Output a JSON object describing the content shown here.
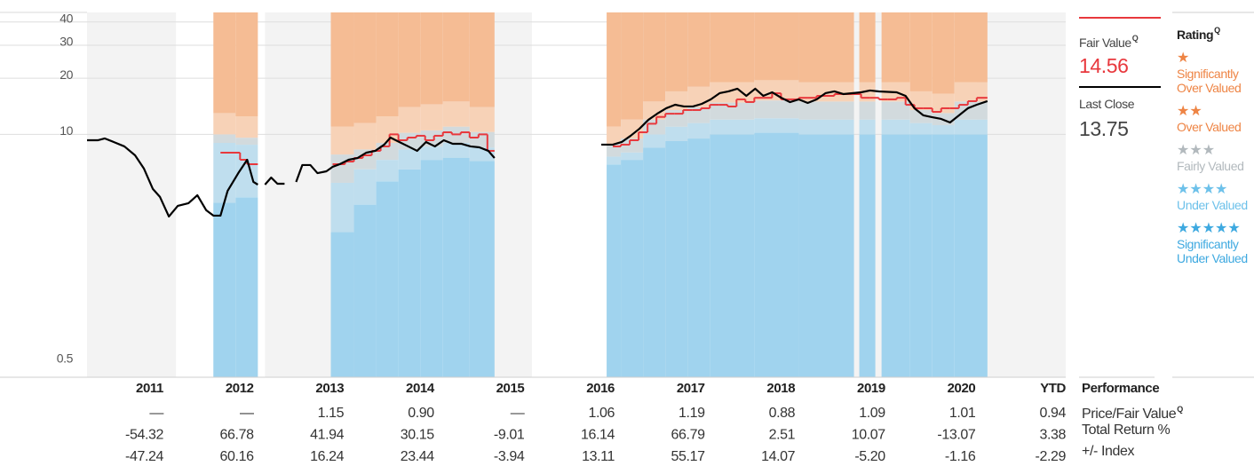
{
  "chart_data": {
    "type": "line",
    "log_scale": true,
    "grid": true,
    "xlim": [
      2011,
      2022
    ],
    "ylim": [
      0.5,
      45
    ],
    "yticks": [
      0.5,
      10,
      20,
      30,
      40
    ],
    "series": [
      {
        "name": "Fair Value",
        "color": "#e8383d",
        "step": true,
        "x": [
          2012.5,
          2012.72,
          2012.8,
          2012.92,
          null,
          2013.76,
          2013.9,
          2014.0,
          2014.1,
          2014.2,
          2014.3,
          2014.4,
          2014.5,
          2014.6,
          2014.7,
          2014.8,
          2014.9,
          2015.0,
          2015.1,
          2015.2,
          2015.3,
          2015.4,
          2015.5,
          2015.58,
          null,
          2016.91,
          2017.0,
          2017.1,
          2017.2,
          2017.3,
          2017.4,
          2017.5,
          2017.6,
          2017.7,
          2017.8,
          2017.9,
          2018.0,
          2018.1,
          2018.2,
          2018.3,
          2018.4,
          2018.5,
          2018.6,
          2018.7,
          2018.8,
          2018.9,
          2019.0,
          2019.1,
          2019.2,
          2019.3,
          2019.4,
          2019.5,
          2019.6,
          2019.7,
          2019.8,
          2019.9,
          2020.0,
          2020.1,
          2020.2,
          2020.3,
          2020.4,
          2020.5,
          2020.6,
          2020.7,
          2020.8,
          2020.9,
          2021.0,
          2021.12
        ],
        "values": [
          7.98,
          7.31,
          6.92,
          6.92,
          null,
          6.92,
          7.15,
          7.47,
          7.72,
          8.16,
          8.62,
          10.0,
          9.3,
          9.61,
          9.83,
          9.3,
          9.83,
          10.26,
          10.0,
          10.26,
          9.61,
          10.0,
          8.16,
          8.16,
          null,
          8.62,
          8.81,
          9.3,
          10.26,
          11.4,
          12.4,
          12.9,
          12.9,
          13.5,
          13.5,
          13.8,
          14.4,
          14.4,
          14.1,
          15.4,
          14.9,
          15.7,
          15.7,
          16.6,
          15.4,
          15.4,
          15.7,
          15.7,
          16.08,
          16.08,
          16.44,
          16.44,
          16.44,
          15.7,
          15.7,
          15.4,
          15.4,
          15.7,
          14.4,
          13.8,
          13.8,
          13.2,
          13.8,
          13.8,
          14.4,
          15.06,
          15.7,
          15.7
        ]
      },
      {
        "name": "Last Close",
        "color": "#000000",
        "x": [
          2011.0,
          2011.12,
          2011.2,
          2011.3,
          2011.42,
          2011.54,
          2011.64,
          2011.74,
          2011.82,
          2011.92,
          2012.02,
          2012.14,
          2012.24,
          2012.34,
          2012.42,
          2012.5,
          2012.58,
          2012.7,
          2012.8,
          2012.87,
          2012.92,
          null,
          2013.0,
          2013.07,
          2013.14,
          2013.22,
          null,
          2013.35,
          2013.42,
          2013.51,
          2013.59,
          2013.69,
          2013.76,
          2013.84,
          2013.94,
          2014.04,
          2014.14,
          2014.24,
          2014.34,
          2014.41,
          2014.51,
          2014.61,
          2014.71,
          2014.81,
          2014.91,
          2015.01,
          2015.11,
          2015.21,
          2015.31,
          2015.41,
          2015.51,
          2015.58,
          null,
          2016.78,
          2016.91,
          2017.01,
          2017.11,
          2017.21,
          2017.31,
          2017.41,
          2017.51,
          2017.61,
          2017.71,
          2017.81,
          2017.91,
          2018.01,
          2018.11,
          2018.21,
          2018.31,
          2018.41,
          2018.51,
          2018.6,
          2018.7,
          2018.8,
          2018.9,
          2019.0,
          2019.1,
          2019.2,
          2019.3,
          2019.4,
          2019.5,
          2019.6,
          2019.7,
          2019.8,
          2019.9,
          2020.1,
          2020.2,
          2020.3,
          2020.4,
          2020.5,
          2020.6,
          2020.7,
          2020.8,
          2020.9,
          2021.0,
          2021.12
        ],
        "values": [
          9.3,
          9.3,
          9.51,
          9.1,
          8.62,
          7.72,
          6.55,
          5.1,
          4.62,
          3.63,
          4.14,
          4.28,
          4.72,
          3.92,
          3.67,
          3.67,
          4.98,
          6.2,
          7.31,
          5.56,
          5.38,
          null,
          5.38,
          5.87,
          5.44,
          5.44,
          null,
          5.56,
          6.85,
          6.85,
          6.2,
          6.34,
          6.7,
          6.92,
          7.31,
          7.47,
          7.98,
          8.16,
          8.81,
          9.61,
          9.1,
          8.62,
          8.16,
          9.1,
          8.62,
          9.3,
          8.9,
          8.9,
          8.62,
          8.52,
          8.16,
          7.47,
          null,
          8.81,
          8.81,
          9.1,
          9.83,
          10.73,
          11.97,
          12.92,
          13.8,
          14.41,
          14.11,
          14.11,
          14.57,
          15.39,
          16.62,
          16.99,
          17.56,
          16.08,
          17.56,
          16.08,
          16.8,
          15.73,
          14.89,
          15.39,
          14.73,
          15.39,
          16.62,
          16.99,
          16.44,
          16.62,
          16.8,
          17.18,
          16.99,
          16.8,
          16.08,
          13.8,
          12.64,
          12.36,
          12.1,
          11.58,
          12.64,
          13.8,
          14.41,
          15.06
        ]
      }
    ],
    "bands": {
      "colors": [
        "#a0d3ee",
        "#bfdeee",
        "#d2dadd",
        "#f7d2b7",
        "#f5bc94"
      ],
      "edges": [
        2012.42,
        2012.67,
        2012.92,
        2013.74,
        2014.0,
        2014.25,
        2014.5,
        2014.75,
        2015.0,
        2015.3,
        2015.58,
        2016.84,
        2017.0,
        2017.25,
        2017.5,
        2017.75,
        2018.0,
        2018.5,
        2019.0,
        2019.62,
        2019.68,
        2019.86,
        2019.93,
        2020.25,
        2020.5,
        2020.75,
        2021.12
      ],
      "levels": [
        [
          4.3,
          9,
          10,
          13
        ],
        [
          4.6,
          8.8,
          9.6,
          12.5
        ],
        null,
        [
          3.0,
          5.5,
          7.8,
          11
        ],
        [
          4.2,
          6.5,
          8.3,
          11.5
        ],
        [
          5.6,
          7.3,
          9.0,
          12.5
        ],
        [
          6.5,
          8.3,
          10.2,
          14
        ],
        [
          7.3,
          8.6,
          10.5,
          14.5
        ],
        [
          7.5,
          9.0,
          11.0,
          15
        ],
        [
          7.2,
          8.5,
          10.3,
          14
        ],
        null,
        [
          6.9,
          7.6,
          8.9,
          11
        ],
        [
          7.3,
          8.0,
          9.5,
          12
        ],
        [
          8.5,
          10,
          12,
          15
        ],
        [
          9.2,
          11,
          13.5,
          17
        ],
        [
          9.5,
          11.5,
          14,
          18
        ],
        [
          10,
          12,
          14.8,
          19
        ],
        [
          10.2,
          12.2,
          15.2,
          19.5
        ],
        [
          10,
          12,
          15,
          19
        ],
        null,
        [
          10,
          12,
          15,
          19
        ],
        null,
        [
          10,
          12,
          15,
          19
        ],
        [
          10,
          11.5,
          13.5,
          17
        ],
        [
          10,
          11.2,
          13,
          16.5
        ],
        [
          10,
          12,
          15,
          19
        ]
      ]
    }
  },
  "legend": {
    "fair_value": 14.56,
    "last_close": 13.75,
    "rating_title": "Rating",
    "q": "Q",
    "ratings": [
      {
        "stars": "★",
        "label": "Significantly Over Valued",
        "color": "#ee8444"
      },
      {
        "stars": "★★",
        "label": "Over Valued",
        "color": "#ee8444"
      },
      {
        "stars": "★★★",
        "label": "Fairly Valued",
        "color": "#b2b9bd"
      },
      {
        "stars": "★★★★",
        "label": "Under Valued",
        "color": "#6dc1ea"
      },
      {
        "stars": "★★★★★",
        "label": "Significantly Under Valued",
        "color": "#3ea9e0"
      }
    ]
  },
  "performance": {
    "title": "Performance",
    "columns": [
      "2011",
      "2012",
      "2013",
      "2014",
      "2015",
      "2016",
      "2017",
      "2018",
      "2019",
      "2020",
      "YTD"
    ],
    "rows": [
      {
        "label": "Price/Fair Value",
        "values": [
          "—",
          "—",
          "1.15",
          "0.90",
          "—",
          "1.06",
          "1.19",
          "0.88",
          "1.09",
          "1.01",
          "0.94"
        ]
      },
      {
        "label": "Total Return %",
        "values": [
          "-54.32",
          "66.78",
          "41.94",
          "30.15",
          "-9.01",
          "16.14",
          "66.79",
          "2.51",
          "10.07",
          "-13.07",
          "3.38"
        ]
      },
      {
        "label": "+/- Index",
        "values": [
          "-47.24",
          "60.16",
          "16.24",
          "23.44",
          "-3.94",
          "13.11",
          "55.17",
          "14.07",
          "-5.20",
          "-1.16",
          "-2.29"
        ]
      }
    ]
  }
}
